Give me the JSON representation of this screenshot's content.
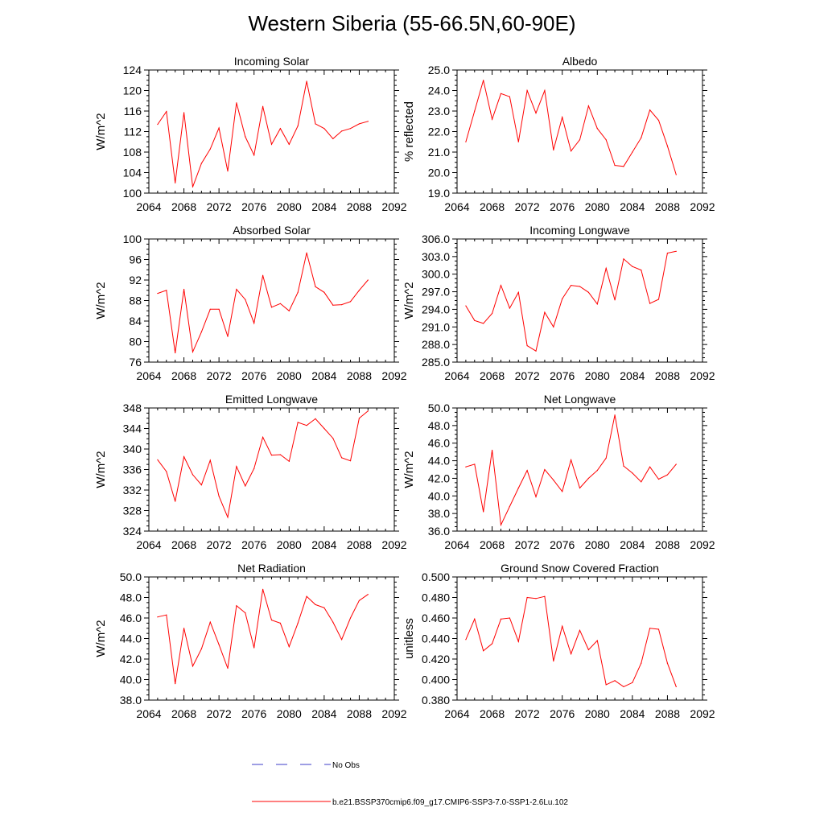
{
  "title": "Western Siberia (55-66.5N,60-90E)",
  "colors": {
    "model": "#ff0000",
    "obs": "#3c3cc8",
    "axis": "#000000"
  },
  "legend": {
    "obs_label": "No Obs",
    "model_label": "b.e21.BSSP370cmip6.f09_g17.CMIP6-SSP3-7.0-SSP1-2.6Lu.102"
  },
  "chart_data": [
    {
      "type": "line",
      "title": "Incoming Solar",
      "ylabel": "W/m^2",
      "xlim": [
        2064,
        2092
      ],
      "xticks": [
        "2064",
        "2068",
        "2072",
        "2076",
        "2080",
        "2084",
        "2088",
        "2092"
      ],
      "ylim": [
        100,
        124
      ],
      "yticks": [
        "100",
        "104",
        "108",
        "112",
        "116",
        "120",
        "124"
      ],
      "x": [
        2065,
        2066,
        2067,
        2068,
        2069,
        2070,
        2071,
        2072,
        2073,
        2074,
        2075,
        2076,
        2077,
        2078,
        2079,
        2080,
        2081,
        2082,
        2083,
        2084,
        2085,
        2086,
        2087,
        2088,
        2089
      ],
      "series": [
        {
          "values": [
            113.4,
            115.9,
            102.0,
            115.7,
            101.2,
            105.8,
            108.6,
            112.7,
            104.3,
            117.6,
            111.0,
            107.4,
            116.9,
            109.5,
            112.6,
            109.5,
            113.1,
            121.8,
            113.5,
            112.6,
            110.6,
            112.1,
            112.6,
            113.5,
            114.0
          ]
        }
      ]
    },
    {
      "type": "line",
      "title": "Albedo",
      "ylabel": "% reflected",
      "xlim": [
        2064,
        2092
      ],
      "xticks": [
        "2064",
        "2068",
        "2072",
        "2076",
        "2080",
        "2084",
        "2088",
        "2092"
      ],
      "ylim": [
        19.0,
        25.0
      ],
      "yticks": [
        "19.0",
        "20.0",
        "21.0",
        "22.0",
        "23.0",
        "24.0",
        "25.0"
      ],
      "x": [
        2065,
        2066,
        2067,
        2068,
        2069,
        2070,
        2071,
        2072,
        2073,
        2074,
        2075,
        2076,
        2077,
        2078,
        2079,
        2080,
        2081,
        2082,
        2083,
        2084,
        2085,
        2086,
        2087,
        2088,
        2089
      ],
      "series": [
        {
          "values": [
            21.5,
            23.0,
            24.5,
            22.6,
            23.85,
            23.7,
            21.5,
            24.0,
            22.9,
            24.0,
            21.1,
            22.7,
            21.05,
            21.6,
            23.25,
            22.15,
            21.6,
            20.35,
            20.3,
            21.0,
            21.7,
            23.05,
            22.55,
            21.3,
            19.9
          ]
        }
      ]
    },
    {
      "type": "line",
      "title": "Absorbed Solar",
      "ylabel": "W/m^2",
      "xlim": [
        2064,
        2092
      ],
      "xticks": [
        "2064",
        "2068",
        "2072",
        "2076",
        "2080",
        "2084",
        "2088",
        "2092"
      ],
      "ylim": [
        76,
        100
      ],
      "yticks": [
        "76",
        "80",
        "84",
        "88",
        "92",
        "96",
        "100"
      ],
      "x": [
        2065,
        2066,
        2067,
        2068,
        2069,
        2070,
        2071,
        2072,
        2073,
        2074,
        2075,
        2076,
        2077,
        2078,
        2079,
        2080,
        2081,
        2082,
        2083,
        2084,
        2085,
        2086,
        2087,
        2088,
        2089
      ],
      "series": [
        {
          "values": [
            89.4,
            90.0,
            77.8,
            90.2,
            78.0,
            81.9,
            86.3,
            86.3,
            81.0,
            90.2,
            88.2,
            83.6,
            92.9,
            86.7,
            87.4,
            86.0,
            89.6,
            97.3,
            90.7,
            89.6,
            87.1,
            87.2,
            87.8,
            90.0,
            92.0
          ]
        }
      ]
    },
    {
      "type": "line",
      "title": "Incoming Longwave",
      "ylabel": "W/m^2",
      "xlim": [
        2064,
        2092
      ],
      "xticks": [
        "2064",
        "2068",
        "2072",
        "2076",
        "2080",
        "2084",
        "2088",
        "2092"
      ],
      "ylim": [
        285.0,
        306.0
      ],
      "yticks": [
        "285.0",
        "288.0",
        "291.0",
        "294.0",
        "297.0",
        "300.0",
        "303.0",
        "306.0"
      ],
      "x": [
        2065,
        2066,
        2067,
        2068,
        2069,
        2070,
        2071,
        2072,
        2073,
        2074,
        2075,
        2076,
        2077,
        2078,
        2079,
        2080,
        2081,
        2082,
        2083,
        2084,
        2085,
        2086,
        2087,
        2088,
        2089
      ],
      "series": [
        {
          "values": [
            294.6,
            292.1,
            291.6,
            293.3,
            298.1,
            294.2,
            296.9,
            287.8,
            286.9,
            293.5,
            291.0,
            295.8,
            298.1,
            297.9,
            296.9,
            294.9,
            301.0,
            295.6,
            302.6,
            301.3,
            300.7,
            295.0,
            295.7,
            303.6,
            303.9
          ]
        }
      ]
    },
    {
      "type": "line",
      "title": "Emitted Longwave",
      "ylabel": "W/m^2",
      "xlim": [
        2064,
        2092
      ],
      "xticks": [
        "2064",
        "2068",
        "2072",
        "2076",
        "2080",
        "2084",
        "2088",
        "2092"
      ],
      "ylim": [
        324,
        348
      ],
      "yticks": [
        "324",
        "328",
        "332",
        "336",
        "340",
        "344",
        "348"
      ],
      "x": [
        2065,
        2066,
        2067,
        2068,
        2069,
        2070,
        2071,
        2072,
        2073,
        2074,
        2075,
        2076,
        2077,
        2078,
        2079,
        2080,
        2081,
        2082,
        2083,
        2084,
        2085,
        2086,
        2087,
        2088,
        2089
      ],
      "series": [
        {
          "values": [
            337.9,
            335.6,
            329.8,
            338.5,
            335.0,
            333.0,
            337.8,
            330.8,
            326.7,
            336.6,
            332.8,
            336.2,
            342.3,
            338.8,
            338.9,
            337.6,
            345.2,
            344.6,
            345.9,
            344.0,
            342.1,
            338.3,
            337.7,
            346.0,
            347.4
          ]
        }
      ]
    },
    {
      "type": "line",
      "title": "Net Longwave",
      "ylabel": "W/m^2",
      "xlim": [
        2064,
        2092
      ],
      "xticks": [
        "2064",
        "2068",
        "2072",
        "2076",
        "2080",
        "2084",
        "2088",
        "2092"
      ],
      "ylim": [
        36.0,
        50.0
      ],
      "yticks": [
        "36.0",
        "38.0",
        "40.0",
        "42.0",
        "44.0",
        "46.0",
        "48.0",
        "50.0"
      ],
      "x": [
        2065,
        2066,
        2067,
        2068,
        2069,
        2070,
        2071,
        2072,
        2073,
        2074,
        2075,
        2076,
        2077,
        2078,
        2079,
        2080,
        2081,
        2082,
        2083,
        2084,
        2085,
        2086,
        2087,
        2088,
        2089
      ],
      "series": [
        {
          "values": [
            43.3,
            43.6,
            38.2,
            45.2,
            36.7,
            38.8,
            40.9,
            42.9,
            39.9,
            43.0,
            41.8,
            40.5,
            44.1,
            40.9,
            42.0,
            42.9,
            44.3,
            49.2,
            43.4,
            42.6,
            41.6,
            43.3,
            41.9,
            42.4,
            43.6
          ]
        }
      ]
    },
    {
      "type": "line",
      "title": "Net Radiation",
      "ylabel": "W/m^2",
      "xlim": [
        2064,
        2092
      ],
      "xticks": [
        "2064",
        "2068",
        "2072",
        "2076",
        "2080",
        "2084",
        "2088",
        "2092"
      ],
      "ylim": [
        38.0,
        50.0
      ],
      "yticks": [
        "38.0",
        "40.0",
        "42.0",
        "44.0",
        "46.0",
        "48.0",
        "50.0"
      ],
      "x": [
        2065,
        2066,
        2067,
        2068,
        2069,
        2070,
        2071,
        2072,
        2073,
        2074,
        2075,
        2076,
        2077,
        2078,
        2079,
        2080,
        2081,
        2082,
        2083,
        2084,
        2085,
        2086,
        2087,
        2088,
        2089
      ],
      "series": [
        {
          "values": [
            46.1,
            46.3,
            39.6,
            45.0,
            41.3,
            43.0,
            45.6,
            43.4,
            41.1,
            47.2,
            46.5,
            43.1,
            48.8,
            45.8,
            45.5,
            43.2,
            45.5,
            48.1,
            47.3,
            47.0,
            45.6,
            43.9,
            46.0,
            47.7,
            48.3
          ]
        }
      ]
    },
    {
      "type": "line",
      "title": "Ground Snow Covered Fraction",
      "ylabel": "unitless",
      "xlim": [
        2064,
        2092
      ],
      "xticks": [
        "2064",
        "2068",
        "2072",
        "2076",
        "2080",
        "2084",
        "2088",
        "2092"
      ],
      "ylim": [
        0.38,
        0.5
      ],
      "yticks": [
        "0.380",
        "0.400",
        "0.420",
        "0.440",
        "0.460",
        "0.480",
        "0.500"
      ],
      "x": [
        2065,
        2066,
        2067,
        2068,
        2069,
        2070,
        2071,
        2072,
        2073,
        2074,
        2075,
        2076,
        2077,
        2078,
        2079,
        2080,
        2081,
        2082,
        2083,
        2084,
        2085,
        2086,
        2087,
        2088,
        2089
      ],
      "series": [
        {
          "values": [
            0.439,
            0.459,
            0.428,
            0.435,
            0.459,
            0.46,
            0.437,
            0.48,
            0.479,
            0.481,
            0.418,
            0.452,
            0.425,
            0.448,
            0.429,
            0.438,
            0.395,
            0.399,
            0.393,
            0.397,
            0.416,
            0.45,
            0.449,
            0.416,
            0.393
          ]
        }
      ]
    }
  ]
}
